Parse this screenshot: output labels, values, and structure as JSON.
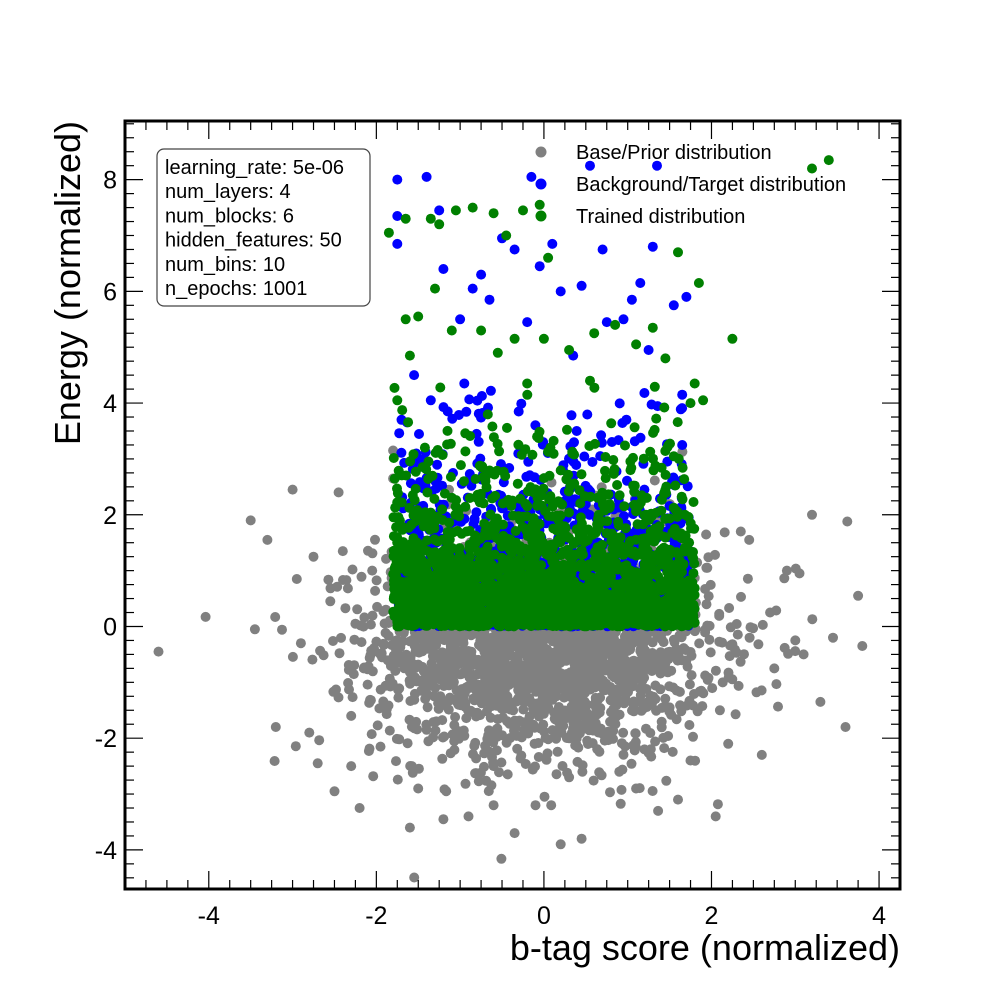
{
  "chart_data": {
    "type": "scatter",
    "title": "",
    "xlabel": "b-tag score (normalized)",
    "ylabel": "Energy (normalized)",
    "xlim": [
      -5.0,
      4.25
    ],
    "ylim": [
      -4.7,
      9.05
    ],
    "x_ticks": [
      -4,
      -2,
      0,
      2,
      4
    ],
    "x_tick_labels": [
      "-4",
      "-2",
      "0",
      "2",
      "4"
    ],
    "y_ticks": [
      -4,
      -2,
      0,
      2,
      4,
      6,
      8
    ],
    "y_tick_labels": [
      "-4",
      "-2",
      "0",
      "2",
      "4",
      "6",
      "8"
    ],
    "grid": false,
    "legend_position": "top-right",
    "series": [
      {
        "name": "Base/Prior distribution",
        "color": "#808080",
        "shape": "approximately Gaussian blob centred near (0, 0), spread ~1 in both axes",
        "points": [
          [
            -4.6,
            -0.45
          ],
          [
            -3.5,
            1.9
          ],
          [
            -3.45,
            -0.05
          ],
          [
            -3.3,
            1.55
          ],
          [
            -3.2,
            -1.8
          ],
          [
            -3.0,
            2.45
          ],
          [
            -2.95,
            0.85
          ],
          [
            -2.9,
            -0.3
          ],
          [
            -2.8,
            -1.9
          ],
          [
            -2.75,
            1.25
          ],
          [
            -2.7,
            -2.45
          ],
          [
            -2.55,
            0.45
          ],
          [
            -2.5,
            -2.95
          ],
          [
            -2.45,
            2.4
          ],
          [
            -2.4,
            1.35
          ],
          [
            -2.3,
            -1.6
          ],
          [
            -2.3,
            -2.5
          ],
          [
            -2.2,
            -3.25
          ],
          [
            -1.95,
            -2.15
          ],
          [
            -1.8,
            2.65
          ],
          [
            -1.8,
            3.15
          ],
          [
            -1.6,
            -3.6
          ],
          [
            -1.5,
            -2.9
          ],
          [
            -1.2,
            -3.45
          ],
          [
            -0.9,
            -3.4
          ],
          [
            -0.6,
            -3.2
          ],
          [
            -0.35,
            -3.7
          ],
          [
            -0.1,
            -3.2
          ],
          [
            0.2,
            -3.9
          ],
          [
            0.45,
            -3.8
          ],
          [
            0.9,
            -2.6
          ],
          [
            1.1,
            -2.9
          ],
          [
            1.6,
            -3.1
          ],
          [
            1.75,
            -2.4
          ],
          [
            2.05,
            -3.4
          ],
          [
            2.2,
            -2.1
          ],
          [
            2.35,
            1.7
          ],
          [
            2.45,
            1.55
          ],
          [
            2.6,
            -2.3
          ],
          [
            2.75,
            -0.75
          ],
          [
            2.9,
            1.0
          ],
          [
            3.05,
            0.95
          ],
          [
            3.1,
            -0.5
          ],
          [
            3.2,
            2.0
          ],
          [
            3.3,
            -1.35
          ],
          [
            3.45,
            -0.2
          ],
          [
            3.6,
            -1.8
          ],
          [
            3.75,
            0.55
          ],
          [
            3.8,
            -0.35
          ],
          [
            3.0,
            -0.25
          ],
          [
            2.7,
            0.25
          ],
          [
            -2.25,
            0.05
          ],
          [
            -2.15,
            -0.75
          ],
          [
            -2.05,
            1.0
          ],
          [
            -1.4,
            -1.85
          ],
          [
            -0.6,
            -2.5
          ],
          [
            0.3,
            -2.7
          ],
          [
            1.2,
            -2.2
          ],
          [
            2.1,
            -1.5
          ],
          [
            1.95,
            1.05
          ],
          [
            -1.95,
            -0.5
          ]
        ],
        "dense_region": {
          "x_center": 0.0,
          "y_center": -0.3,
          "x_sigma": 1.0,
          "y_sigma": 1.0,
          "n": 2400
        }
      },
      {
        "name": "Background/Target distribution",
        "color": "#0000ff",
        "shape": "x roughly uniform in [-1.75, 1.75], y >= 0 with exponential-like tail",
        "points": [
          [
            -1.75,
            8.0
          ],
          [
            -1.75,
            7.35
          ],
          [
            -1.75,
            6.85
          ],
          [
            -1.4,
            8.05
          ],
          [
            -1.25,
            7.45
          ],
          [
            -1.2,
            6.4
          ],
          [
            -1.0,
            5.5
          ],
          [
            -0.85,
            6.05
          ],
          [
            -0.75,
            6.3
          ],
          [
            -0.65,
            5.85
          ],
          [
            -0.5,
            6.95
          ],
          [
            -0.35,
            6.75
          ],
          [
            -0.15,
            8.05
          ],
          [
            -0.05,
            6.45
          ],
          [
            0.1,
            6.85
          ],
          [
            0.2,
            6.0
          ],
          [
            0.45,
            6.1
          ],
          [
            0.55,
            8.25
          ],
          [
            0.7,
            6.75
          ],
          [
            0.75,
            5.45
          ],
          [
            1.05,
            5.85
          ],
          [
            1.15,
            6.15
          ],
          [
            1.3,
            6.8
          ],
          [
            1.35,
            8.25
          ],
          [
            1.55,
            5.75
          ],
          [
            1.7,
            5.9
          ],
          [
            1.65,
            4.15
          ],
          [
            1.65,
            3.25
          ],
          [
            -1.7,
            3.7
          ],
          [
            -1.55,
            4.5
          ],
          [
            -0.2,
            5.45
          ],
          [
            0.95,
            5.5
          ],
          [
            -0.95,
            4.35
          ],
          [
            0.35,
            4.85
          ],
          [
            1.25,
            4.95
          ],
          [
            -1.35,
            4.05
          ]
        ],
        "dense_region": {
          "x_min": -1.75,
          "x_max": 1.75,
          "y_min": 0.0,
          "y_scale": 0.9,
          "n": 1800
        }
      },
      {
        "name": "Trained distribution",
        "color": "#008000",
        "shape": "x roughly uniform in [-1.8, 1.8], y >= 0 with exponential-like tail",
        "points": [
          [
            3.4,
            8.35
          ],
          [
            3.2,
            8.2
          ],
          [
            -1.85,
            7.05
          ],
          [
            -1.65,
            7.3
          ],
          [
            -1.35,
            7.3
          ],
          [
            -1.25,
            7.2
          ],
          [
            -1.05,
            7.45
          ],
          [
            -0.85,
            7.5
          ],
          [
            -0.6,
            7.4
          ],
          [
            -0.25,
            7.45
          ],
          [
            -0.05,
            7.55
          ],
          [
            -0.45,
            7.0
          ],
          [
            0.05,
            6.6
          ],
          [
            1.6,
            6.7
          ],
          [
            2.25,
            5.15
          ],
          [
            1.85,
            6.15
          ],
          [
            -1.65,
            5.5
          ],
          [
            -1.5,
            5.55
          ],
          [
            -1.3,
            6.05
          ],
          [
            -1.1,
            5.3
          ],
          [
            -0.75,
            5.3
          ],
          [
            -0.55,
            4.9
          ],
          [
            -0.35,
            5.15
          ],
          [
            0.0,
            5.15
          ],
          [
            0.3,
            4.95
          ],
          [
            0.6,
            5.25
          ],
          [
            0.85,
            5.4
          ],
          [
            1.1,
            5.05
          ],
          [
            1.3,
            5.35
          ],
          [
            1.45,
            4.8
          ],
          [
            1.8,
            4.35
          ],
          [
            1.9,
            4.05
          ],
          [
            -1.75,
            4.05
          ],
          [
            -1.6,
            4.85
          ],
          [
            1.75,
            4.0
          ],
          [
            -0.2,
            4.35
          ],
          [
            0.55,
            4.4
          ]
        ],
        "dense_region": {
          "x_min": -1.8,
          "x_max": 1.8,
          "y_min": 0.0,
          "y_scale": 0.9,
          "n": 2200
        }
      }
    ],
    "annotation_box_lines": [
      "learning_rate: 5e-06",
      "num_layers: 4",
      "num_blocks: 6",
      "hidden_features: 50",
      "num_bins: 10",
      "n_epochs: 1001"
    ]
  }
}
